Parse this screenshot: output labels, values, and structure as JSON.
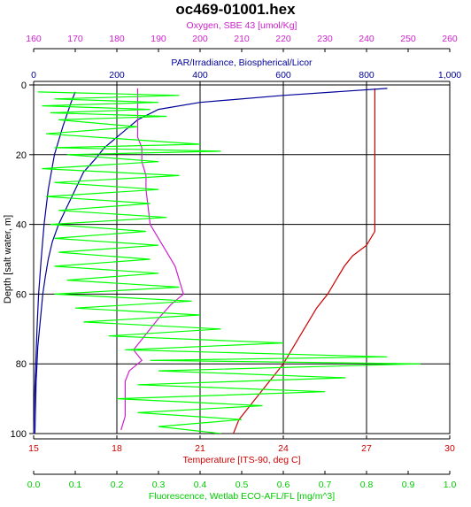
{
  "chart_data": {
    "type": "line",
    "title": "oc469-01001.hex",
    "y_axis": {
      "label": "Depth [salt water, m]",
      "range": [
        0,
        100
      ],
      "inverted": true,
      "ticks": [
        0,
        20,
        40,
        60,
        80,
        100
      ],
      "tick_labels": [
        "0",
        "20",
        "40",
        "60",
        "80",
        "100"
      ]
    },
    "x_axes": [
      {
        "id": "oxygen",
        "label": "Oxygen, SBE 43 [umol/Kg]",
        "position": "top",
        "color": "#cc22cc",
        "range": [
          160,
          260
        ],
        "ticks": [
          160,
          170,
          180,
          190,
          200,
          210,
          220,
          230,
          240,
          250,
          260
        ],
        "tick_labels": [
          "160",
          "170",
          "180",
          "190",
          "200",
          "210",
          "220",
          "230",
          "240",
          "250",
          "260"
        ]
      },
      {
        "id": "par",
        "label": "PAR/Irradiance, Biospherical/Licor",
        "position": "top",
        "color": "#000099",
        "range": [
          0,
          1000
        ],
        "ticks": [
          0,
          200,
          400,
          600,
          800,
          1000
        ],
        "tick_labels": [
          "0",
          "200",
          "400",
          "600",
          "800",
          "1,000"
        ]
      },
      {
        "id": "temperature",
        "label": "Temperature [ITS-90, deg C]",
        "position": "bottom",
        "color": "#cc0000",
        "range": [
          15,
          30
        ],
        "ticks": [
          15,
          18,
          21,
          24,
          27,
          30
        ],
        "tick_labels": [
          "15",
          "18",
          "21",
          "24",
          "27",
          "30"
        ]
      },
      {
        "id": "fluorescence",
        "label": "Fluorescence, Wetlab ECO-AFL/FL [mg/m^3]",
        "position": "bottom",
        "color": "#00cc00",
        "range": [
          0,
          1
        ],
        "ticks": [
          0,
          0.1,
          0.2,
          0.3,
          0.4,
          0.5,
          0.6,
          0.7,
          0.8,
          0.9,
          1.0
        ],
        "tick_labels": [
          "0.0",
          "0.1",
          "0.2",
          "0.3",
          "0.4",
          "0.5",
          "0.6",
          "0.7",
          "0.8",
          "0.9",
          "1.0"
        ]
      }
    ],
    "grid": true,
    "series": [
      {
        "axis": "temperature",
        "color": "#cc0000",
        "points": [
          [
            27.3,
            1
          ],
          [
            27.3,
            5
          ],
          [
            27.3,
            15
          ],
          [
            27.3,
            25
          ],
          [
            27.3,
            35
          ],
          [
            27.3,
            42
          ],
          [
            27.0,
            46
          ],
          [
            26.5,
            49
          ],
          [
            26.2,
            52
          ],
          [
            25.9,
            56
          ],
          [
            25.6,
            60
          ],
          [
            25.2,
            64
          ],
          [
            24.9,
            68
          ],
          [
            24.6,
            72
          ],
          [
            24.3,
            76
          ],
          [
            24.0,
            80
          ],
          [
            23.6,
            84
          ],
          [
            23.2,
            88
          ],
          [
            22.8,
            92
          ],
          [
            22.4,
            96
          ],
          [
            22.2,
            100
          ]
        ]
      },
      {
        "axis": "par",
        "color": "#000099",
        "points": [
          [
            850,
            1
          ],
          [
            600,
            3
          ],
          [
            400,
            5
          ],
          [
            300,
            7
          ],
          [
            250,
            10
          ],
          [
            220,
            13
          ],
          [
            200,
            15
          ],
          [
            170,
            18
          ],
          [
            150,
            21
          ],
          [
            120,
            25
          ],
          [
            100,
            30
          ],
          [
            80,
            35
          ],
          [
            60,
            40
          ],
          [
            45,
            45
          ],
          [
            35,
            50
          ],
          [
            28,
            55
          ],
          [
            22,
            60
          ],
          [
            18,
            65
          ],
          [
            14,
            70
          ],
          [
            10,
            75
          ],
          [
            8,
            80
          ],
          [
            6,
            85
          ],
          [
            5,
            90
          ],
          [
            4,
            95
          ],
          [
            3,
            100
          ]
        ]
      },
      {
        "axis": "par",
        "color": "#000099",
        "points": [
          [
            0,
            100
          ],
          [
            2,
            90
          ],
          [
            5,
            80
          ],
          [
            8,
            70
          ],
          [
            12,
            60
          ],
          [
            18,
            50
          ],
          [
            25,
            40
          ],
          [
            35,
            30
          ],
          [
            50,
            20
          ],
          [
            70,
            12
          ],
          [
            90,
            5
          ],
          [
            100,
            2
          ]
        ]
      },
      {
        "axis": "oxygen",
        "color": "#cc22cc",
        "points": [
          [
            185,
            1
          ],
          [
            185,
            5
          ],
          [
            185,
            10
          ],
          [
            185,
            15
          ],
          [
            186,
            18
          ],
          [
            186,
            22
          ],
          [
            187,
            26
          ],
          [
            187,
            30
          ],
          [
            187.5,
            35
          ],
          [
            188,
            40
          ],
          [
            190,
            44
          ],
          [
            192,
            48
          ],
          [
            194,
            52
          ],
          [
            195,
            56
          ],
          [
            196,
            60
          ],
          [
            193,
            63
          ],
          [
            190,
            67
          ],
          [
            188,
            70
          ],
          [
            186,
            73
          ],
          [
            184,
            76
          ],
          [
            186,
            79
          ],
          [
            183,
            82
          ],
          [
            182,
            85
          ],
          [
            182,
            90
          ],
          [
            182,
            95
          ],
          [
            181,
            99
          ]
        ]
      },
      {
        "axis": "fluorescence",
        "color": "#00ff00",
        "points": [
          [
            0.01,
            2
          ],
          [
            0.35,
            3
          ],
          [
            0.05,
            4
          ],
          [
            0.3,
            5
          ],
          [
            0.02,
            6
          ],
          [
            0.28,
            7
          ],
          [
            0.04,
            8
          ],
          [
            0.32,
            9
          ],
          [
            0.06,
            10
          ],
          [
            0.25,
            12
          ],
          [
            0.03,
            14
          ],
          [
            0.4,
            17
          ],
          [
            0.05,
            18
          ],
          [
            0.45,
            19
          ],
          [
            0.08,
            20
          ],
          [
            0.3,
            22
          ],
          [
            0.02,
            24
          ],
          [
            0.35,
            26
          ],
          [
            0.05,
            28
          ],
          [
            0.3,
            30
          ],
          [
            0.03,
            32
          ],
          [
            0.28,
            34
          ],
          [
            0.06,
            36
          ],
          [
            0.32,
            38
          ],
          [
            0.04,
            40
          ],
          [
            0.27,
            42
          ],
          [
            0.05,
            44
          ],
          [
            0.3,
            46
          ],
          [
            0.06,
            48
          ],
          [
            0.28,
            50
          ],
          [
            0.05,
            52
          ],
          [
            0.3,
            54
          ],
          [
            0.08,
            56
          ],
          [
            0.35,
            58
          ],
          [
            0.05,
            60
          ],
          [
            0.38,
            62
          ],
          [
            0.1,
            64
          ],
          [
            0.4,
            66
          ],
          [
            0.12,
            68
          ],
          [
            0.45,
            70
          ],
          [
            0.18,
            72
          ],
          [
            0.6,
            74
          ],
          [
            0.22,
            76
          ],
          [
            0.85,
            78
          ],
          [
            0.28,
            79
          ],
          [
            0.93,
            80
          ],
          [
            0.3,
            82
          ],
          [
            0.75,
            84
          ],
          [
            0.25,
            86
          ],
          [
            0.7,
            88
          ],
          [
            0.2,
            90
          ],
          [
            0.55,
            92
          ],
          [
            0.25,
            94
          ],
          [
            0.5,
            96
          ],
          [
            0.3,
            98
          ],
          [
            0.45,
            100
          ]
        ]
      }
    ]
  }
}
